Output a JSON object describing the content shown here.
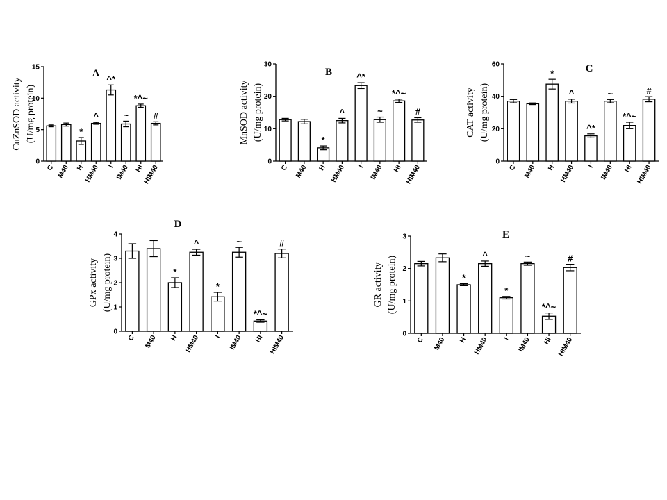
{
  "chart_data": [
    {
      "type": "bar",
      "panel": "A",
      "ylabel": [
        "CuZnSOD activity",
        "(U/mg protein)"
      ],
      "ylim": [
        0,
        15
      ],
      "yticks": [
        0,
        5,
        10,
        15
      ],
      "categories": [
        "C",
        "M40",
        "H",
        "HM40",
        "I",
        "IM40",
        "HI",
        "HIM40"
      ],
      "values": [
        5.6,
        5.8,
        3.2,
        6.0,
        11.3,
        5.9,
        8.8,
        6.0
      ],
      "errors": [
        0.15,
        0.25,
        0.55,
        0.15,
        0.8,
        0.45,
        0.25,
        0.25
      ],
      "annotations": [
        "",
        "",
        "*",
        "^",
        "^*",
        "~",
        "*^~",
        "#"
      ]
    },
    {
      "type": "bar",
      "panel": "B",
      "ylabel": [
        "MnSOD activity",
        "(U/mg protein)"
      ],
      "ylim": [
        0,
        30
      ],
      "yticks": [
        0,
        10,
        20,
        30
      ],
      "categories": [
        "C",
        "M40",
        "H",
        "HM40",
        "I",
        "IM40",
        "HI",
        "HIM40"
      ],
      "values": [
        12.8,
        12.2,
        4.1,
        12.5,
        23.3,
        12.8,
        18.6,
        12.7
      ],
      "errors": [
        0.4,
        0.7,
        0.6,
        0.7,
        0.9,
        0.8,
        0.5,
        0.7
      ],
      "annotations": [
        "",
        "",
        "*",
        "^",
        "^*",
        "~",
        "*^~",
        "#"
      ]
    },
    {
      "type": "bar",
      "panel": "C",
      "ylabel": [
        "CAT activity",
        "(U/mg protein)"
      ],
      "ylim": [
        0,
        60
      ],
      "yticks": [
        0,
        20,
        40,
        60
      ],
      "categories": [
        "C",
        "M40",
        "H",
        "HM40",
        "I",
        "IM40",
        "HI",
        "HIM40"
      ],
      "values": [
        37.0,
        35.4,
        47.5,
        37.0,
        15.6,
        37.0,
        22.0,
        38.2
      ],
      "errors": [
        1.0,
        0.5,
        3.0,
        1.2,
        1.2,
        1.0,
        2.0,
        1.6
      ],
      "annotations": [
        "",
        "",
        "*",
        "^",
        "^*",
        "~",
        "*^~",
        "#"
      ]
    },
    {
      "type": "bar",
      "panel": "D",
      "ylabel": [
        "GPx activity",
        "(U/mg protein)"
      ],
      "ylim": [
        0,
        4
      ],
      "yticks": [
        0,
        1,
        2,
        3,
        4
      ],
      "categories": [
        "C",
        "M40",
        "H",
        "HM40",
        "I",
        "IM40",
        "HI",
        "HIM40"
      ],
      "values": [
        3.3,
        3.4,
        2.0,
        3.25,
        1.42,
        3.25,
        0.42,
        3.2
      ],
      "errors": [
        0.3,
        0.33,
        0.2,
        0.12,
        0.18,
        0.2,
        0.05,
        0.18
      ],
      "annotations": [
        "",
        "",
        "*",
        "^",
        "*",
        "~",
        "*^~",
        "#"
      ]
    },
    {
      "type": "bar",
      "panel": "E",
      "ylabel": [
        "GR activity",
        "(U/mg protein)"
      ],
      "ylim": [
        0,
        3
      ],
      "yticks": [
        0,
        1,
        2,
        3
      ],
      "categories": [
        "C",
        "M40",
        "H",
        "HM40",
        "I",
        "IM40",
        "HI",
        "HIM40"
      ],
      "values": [
        2.15,
        2.33,
        1.5,
        2.15,
        1.1,
        2.15,
        0.53,
        2.03
      ],
      "errors": [
        0.07,
        0.12,
        0.03,
        0.08,
        0.04,
        0.05,
        0.1,
        0.1
      ],
      "annotations": [
        "",
        "",
        "*",
        "^",
        "*",
        "~",
        "*^~",
        "#"
      ]
    }
  ]
}
